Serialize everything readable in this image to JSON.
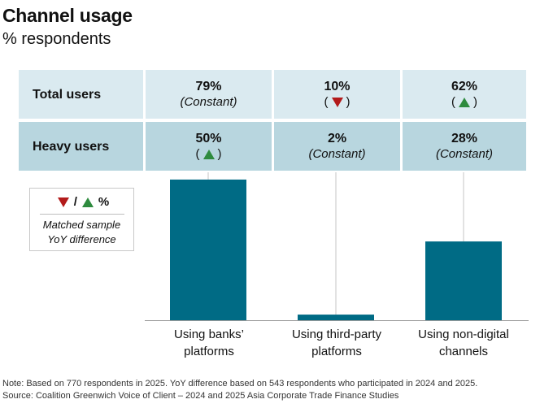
{
  "title": "Channel usage",
  "subtitle": "% respondents",
  "table": {
    "rows": [
      {
        "label": "Total users",
        "cells": [
          {
            "value": "79%",
            "note": "(Constant)",
            "trend": "none"
          },
          {
            "value": "10%",
            "note": "",
            "trend": "down"
          },
          {
            "value": "62%",
            "note": "",
            "trend": "up"
          }
        ]
      },
      {
        "label": "Heavy users",
        "cells": [
          {
            "value": "50%",
            "note": "",
            "trend": "up"
          },
          {
            "value": "2%",
            "note": "(Constant)",
            "trend": "none"
          },
          {
            "value": "28%",
            "note": "(Constant)",
            "trend": "none"
          }
        ]
      }
    ]
  },
  "legend": {
    "symbol_text": "%",
    "line1": "Matched sample",
    "line2": "YoY difference"
  },
  "colors": {
    "bar": "#006b85",
    "up": "#2e8b3e",
    "down": "#b31b1b"
  },
  "chart_data": {
    "type": "bar",
    "title": "Channel usage",
    "subtitle": "% respondents",
    "categories": [
      "Using banks' platforms",
      "Using third-party platforms",
      "Using non-digital channels"
    ],
    "category_lines": [
      [
        "Using banks’",
        "platforms"
      ],
      [
        "Using third-party",
        "platforms"
      ],
      [
        "Using non-digital",
        "channels"
      ]
    ],
    "series": [
      {
        "name": "Heavy users",
        "values": [
          50,
          2,
          28
        ]
      }
    ],
    "ylim": [
      0,
      52
    ],
    "grid": false,
    "xlabel": "",
    "ylabel": ""
  },
  "footnotes": {
    "note": "Note: Based on 770 respondents in 2025. YoY difference based on 543 respondents who participated in 2024 and 2025.",
    "source": "Source: Coalition Greenwich Voice of Client – 2024 and 2025 Asia Corporate Trade Finance Studies"
  }
}
